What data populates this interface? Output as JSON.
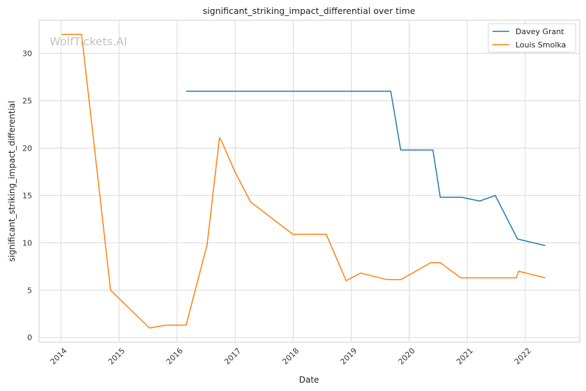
{
  "watermark": "WolfTickets.AI",
  "chart_data": {
    "type": "line",
    "title": "significant_striking_impact_differential over time",
    "xlabel": "Date",
    "ylabel": "significant_striking_impact_differential",
    "xlim": [
      "2013-08-15",
      "2022-12-10"
    ],
    "ylim": [
      -0.5,
      33.5
    ],
    "x_ticks": [
      "2014",
      "2015",
      "2016",
      "2017",
      "2018",
      "2019",
      "2020",
      "2021",
      "2022"
    ],
    "y_ticks": [
      0,
      5,
      10,
      15,
      20,
      25,
      30
    ],
    "grid": true,
    "legend": "upper right",
    "series": [
      {
        "name": "Davey Grant",
        "color": "#1f77b4",
        "points": [
          [
            "2016-02-27",
            26.0
          ],
          [
            "2019-09-07",
            26.0
          ],
          [
            "2019-11-09",
            19.8
          ],
          [
            "2020-05-30",
            19.8
          ],
          [
            "2020-07-15",
            14.8
          ],
          [
            "2020-11-28",
            14.8
          ],
          [
            "2021-03-20",
            14.4
          ],
          [
            "2021-06-26",
            15.0
          ],
          [
            "2021-11-13",
            10.4
          ],
          [
            "2022-05-07",
            9.7
          ]
        ]
      },
      {
        "name": "Louis Smolka",
        "color": "#ff7f0e",
        "points": [
          [
            "2014-01-04",
            32.0
          ],
          [
            "2014-05-10",
            32.0
          ],
          [
            "2014-11-08",
            5.0
          ],
          [
            "2015-07-11",
            1.0
          ],
          [
            "2015-10-24",
            1.3
          ],
          [
            "2016-02-27",
            1.3
          ],
          [
            "2016-07-08",
            9.8
          ],
          [
            "2016-09-24",
            21.1
          ],
          [
            "2016-10-08",
            20.7
          ],
          [
            "2016-12-30",
            17.5
          ],
          [
            "2017-04-08",
            14.3
          ],
          [
            "2017-12-30",
            10.9
          ],
          [
            "2018-07-28",
            10.9
          ],
          [
            "2018-11-30",
            6.0
          ],
          [
            "2019-03-02",
            6.8
          ],
          [
            "2019-08-17",
            6.1
          ],
          [
            "2019-11-09",
            6.1
          ],
          [
            "2020-05-16",
            7.9
          ],
          [
            "2020-07-15",
            7.9
          ],
          [
            "2020-11-21",
            6.3
          ],
          [
            "2021-11-06",
            6.3
          ],
          [
            "2021-11-20",
            7.0
          ],
          [
            "2022-05-07",
            6.3
          ]
        ]
      }
    ]
  }
}
